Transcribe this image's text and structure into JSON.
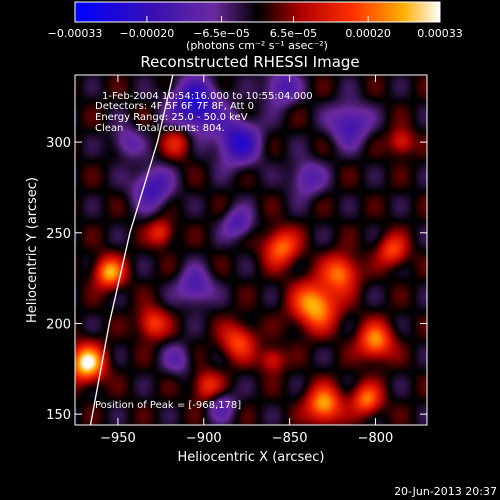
{
  "chart_data": {
    "type": "heatmap",
    "title": "Reconstructed RHESSI Image",
    "xlabel": "Heliocentric X (arcsec)",
    "ylabel": "Heliocentric Y (arcsec)",
    "xlim": [
      -975,
      -770
    ],
    "ylim": [
      144,
      337
    ],
    "x_ticks": [
      -950,
      -900,
      -850,
      -800
    ],
    "x_tick_labels": [
      "−950",
      "−900",
      "−850",
      "−800"
    ],
    "y_ticks": [
      150,
      200,
      250,
      300
    ],
    "y_tick_labels": [
      "150",
      "200",
      "250",
      "300"
    ],
    "colorbar": {
      "range": [
        -0.00033,
        0.00033
      ],
      "ticks": [
        -0.00033,
        -0.0002,
        -6.5e-05,
        6.5e-05,
        0.0002,
        0.00033
      ],
      "tick_labels": [
        "−0.00033",
        "−0.00020",
        "−6.5e−05",
        "6.5e−05",
        "0.00020",
        "0.00033"
      ],
      "unit_label": "(photons cm⁻² s⁻¹ asec⁻²)",
      "colormap": "blue-purple-black-red-yellow-white"
    },
    "annotations": [
      "1-Feb-2004 10:54:16.000 to 10:55:04.000",
      "Detectors: 4F 5F 6F 7F 8F, Att 0",
      "Energy Range: 25.0 - 50.0 keV",
      "Clean    Total counts: 804."
    ],
    "peak_annotation": "Position of Peak = [-968,178]",
    "peak": [
      -968,
      178
    ],
    "sources": [
      {
        "x": -968,
        "y": 178,
        "amp": 0.00033,
        "sigma": 7
      },
      {
        "x": -955,
        "y": 228,
        "amp": 0.00026,
        "sigma": 6
      },
      {
        "x": -930,
        "y": 200,
        "amp": 0.00018,
        "sigma": 6
      },
      {
        "x": -925,
        "y": 250,
        "amp": 0.00016,
        "sigma": 5
      },
      {
        "x": -915,
        "y": 300,
        "amp": 0.00014,
        "sigma": 6
      },
      {
        "x": -898,
        "y": 165,
        "amp": 0.00016,
        "sigma": 6
      },
      {
        "x": -880,
        "y": 190,
        "amp": 0.00018,
        "sigma": 7
      },
      {
        "x": -855,
        "y": 242,
        "amp": 0.00022,
        "sigma": 7
      },
      {
        "x": -835,
        "y": 210,
        "amp": 0.00028,
        "sigma": 9
      },
      {
        "x": -820,
        "y": 228,
        "amp": 0.00022,
        "sigma": 7
      },
      {
        "x": -800,
        "y": 190,
        "amp": 0.00024,
        "sigma": 7
      },
      {
        "x": -790,
        "y": 240,
        "amp": 0.00018,
        "sigma": 6
      },
      {
        "x": -830,
        "y": 155,
        "amp": 0.00027,
        "sigma": 7
      },
      {
        "x": -805,
        "y": 158,
        "amp": 0.00022,
        "sigma": 6
      },
      {
        "x": -860,
        "y": 180,
        "amp": 0.00014,
        "sigma": 5
      },
      {
        "x": -785,
        "y": 300,
        "amp": 0.00015,
        "sigma": 5
      },
      {
        "x": -905,
        "y": 320,
        "amp": -0.00026,
        "sigma": 10
      },
      {
        "x": -880,
        "y": 300,
        "amp": -0.00022,
        "sigma": 9
      },
      {
        "x": -930,
        "y": 275,
        "amp": -0.00018,
        "sigma": 8
      },
      {
        "x": -905,
        "y": 220,
        "amp": -0.00016,
        "sigma": 7
      },
      {
        "x": -880,
        "y": 255,
        "amp": -0.00015,
        "sigma": 6
      },
      {
        "x": -855,
        "y": 330,
        "amp": -0.00016,
        "sigma": 7
      },
      {
        "x": -815,
        "y": 310,
        "amp": -0.00018,
        "sigma": 8
      },
      {
        "x": -840,
        "y": 280,
        "amp": -0.00014,
        "sigma": 7
      },
      {
        "x": -945,
        "y": 300,
        "amp": -0.00012,
        "sigma": 6
      },
      {
        "x": -890,
        "y": 155,
        "amp": -0.00012,
        "sigma": 6
      },
      {
        "x": -915,
        "y": 180,
        "amp": -0.0001,
        "sigma": 6
      }
    ],
    "limb_curve": [
      [
        -966,
        144
      ],
      [
        -955,
        200
      ],
      [
        -943,
        250
      ],
      [
        -927,
        300
      ],
      [
        -918,
        337
      ]
    ]
  },
  "timestamp": "20-Jun-2013 20:37"
}
